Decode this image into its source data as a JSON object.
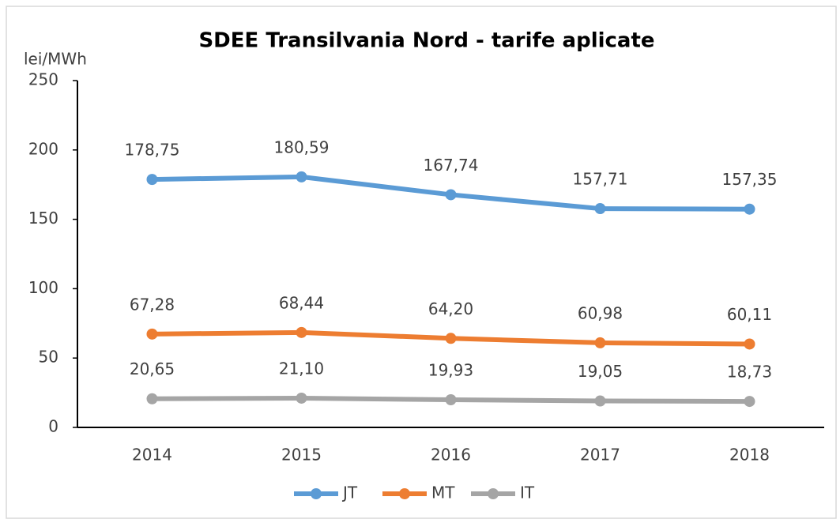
{
  "chart_data": {
    "type": "line",
    "title": "SDEE Transilvania Nord - tarife aplicate",
    "y_label": "lei/MWh",
    "categories": [
      "2014",
      "2015",
      "2016",
      "2017",
      "2018"
    ],
    "series": [
      {
        "name": "JT",
        "color": "#5b9bd5",
        "values": [
          178.75,
          180.59,
          167.74,
          157.71,
          157.35
        ],
        "value_labels": [
          "178,75",
          "180,59",
          "167,74",
          "157,71",
          "157,35"
        ]
      },
      {
        "name": "MT",
        "color": "#ed7d31",
        "values": [
          67.28,
          68.44,
          64.2,
          60.98,
          60.11
        ],
        "value_labels": [
          "67,28",
          "68,44",
          "64,20",
          "60,98",
          "60,11"
        ]
      },
      {
        "name": "IT",
        "color": "#a5a5a5",
        "values": [
          20.65,
          21.1,
          19.93,
          19.05,
          18.73
        ],
        "value_labels": [
          "20,65",
          "21,10",
          "19,93",
          "19,05",
          "18,73"
        ]
      }
    ],
    "ylim": [
      0,
      250
    ],
    "yticks": [
      0,
      50,
      100,
      150,
      200,
      250
    ],
    "grid": false,
    "legend": "bottom"
  }
}
